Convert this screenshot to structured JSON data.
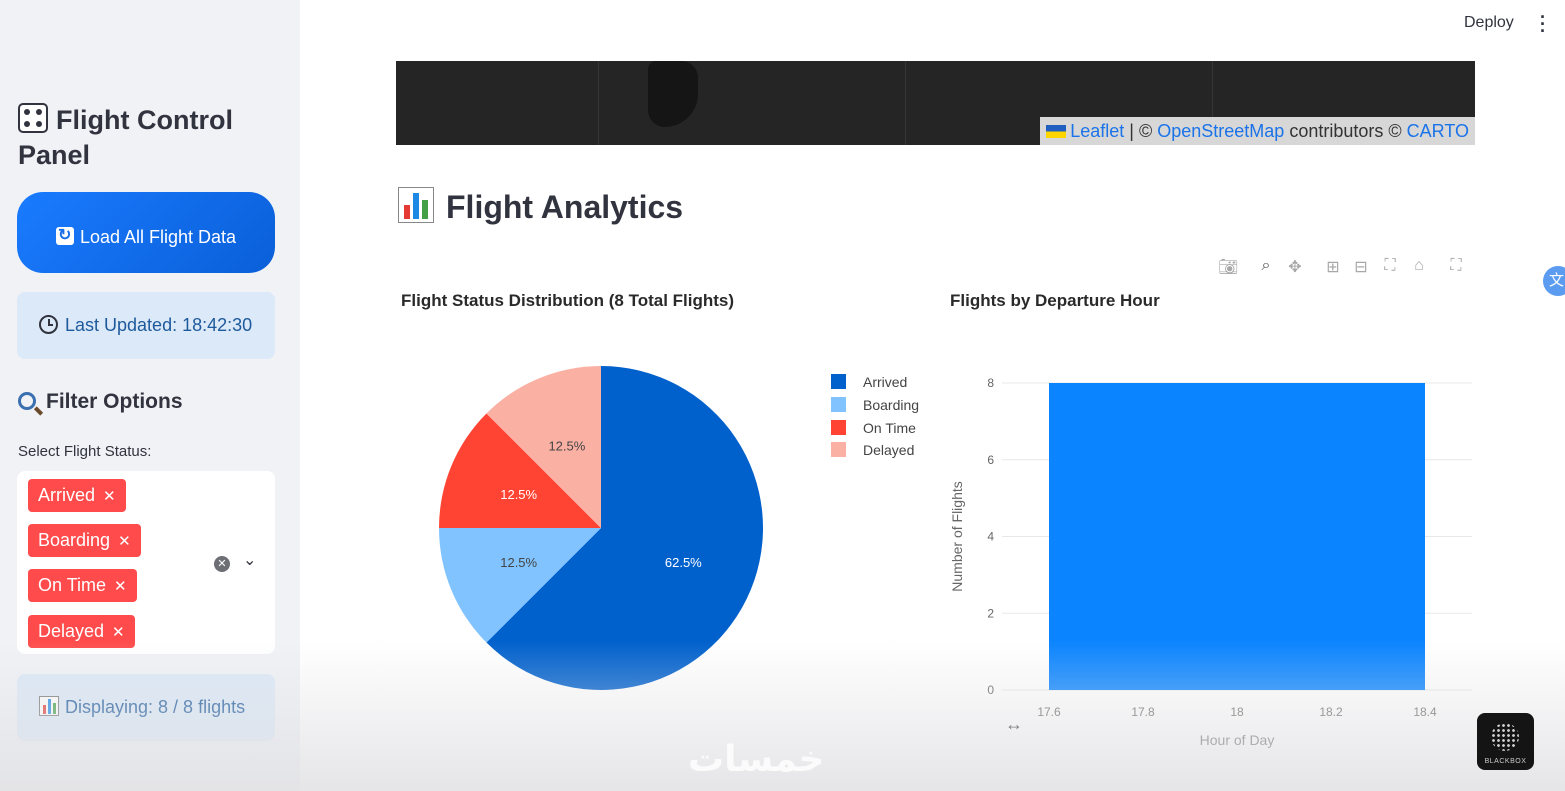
{
  "sidebar": {
    "title": "Flight Control Panel",
    "load_button_label": "Load All Flight Data",
    "last_updated": "Last Updated: 18:42:30",
    "filter_heading": "Filter Options",
    "select_label": "Select Flight Status:",
    "selected_statuses": [
      "Arrived",
      "Boarding",
      "On Time",
      "Delayed"
    ],
    "displaying": "Displaying: 8 / 8 flights"
  },
  "header": {
    "deploy_label": "Deploy"
  },
  "map": {
    "attribution_leaflet": "Leaflet",
    "attribution_sep1": " | © ",
    "attribution_osm": "OpenStreetMap",
    "attribution_contrib": " contributors © ",
    "attribution_carto": "CARTO"
  },
  "analytics": {
    "heading": "Flight Analytics"
  },
  "modebar_icons": [
    "camera-icon",
    "zoom-icon",
    "pan-icon",
    "zoom-in-icon",
    "zoom-out-icon",
    "autoscale-icon",
    "reset-axes-icon",
    "fullscreen-icon"
  ],
  "chart_data": [
    {
      "type": "pie",
      "title": "Flight Status Distribution (8 Total Flights)",
      "labels": [
        "Arrived",
        "Boarding",
        "On Time",
        "Delayed"
      ],
      "values": [
        5,
        1,
        1,
        1
      ],
      "percent_labels": [
        "62.5%",
        "12.5%",
        "12.5%",
        "12.5%"
      ],
      "colors": [
        "#0060cc",
        "#80c3ff",
        "#ff4433",
        "#fbb0a4"
      ],
      "legend": "right"
    },
    {
      "type": "bar",
      "title": "Flights by Departure Hour",
      "xlabel": "Hour of Day",
      "ylabel": "Number of Flights",
      "x": [
        18
      ],
      "values": [
        8
      ],
      "bar_width": 0.8,
      "xlim": [
        17.5,
        18.5
      ],
      "ylim": [
        0,
        8
      ],
      "xticks": [
        "17.6",
        "17.8",
        "18",
        "18.2",
        "18.4"
      ],
      "yticks": [
        "0",
        "2",
        "4",
        "6",
        "8"
      ],
      "color": "#0a84ff",
      "grid": true
    }
  ],
  "colors": {
    "accent": "#ff4b4b",
    "primary": "#1a7bff",
    "info_bg": "#dce9f8"
  }
}
